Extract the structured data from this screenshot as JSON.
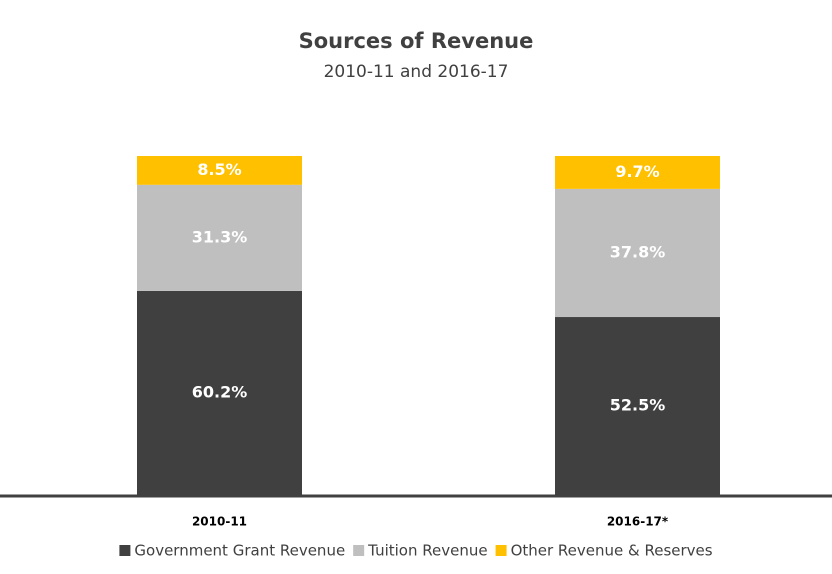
{
  "chart_data": {
    "type": "stacked_bar",
    "title": "Sources of Revenue",
    "subtitle": "2010-11 and 2016-17",
    "categories": [
      "2010-11",
      "2016-17*"
    ],
    "series": [
      {
        "name": "Government Grant Revenue",
        "color": "#404040",
        "values": [
          60.2,
          52.5
        ],
        "value_labels": [
          "60.2%",
          "52.5%"
        ]
      },
      {
        "name": "Tuition Revenue",
        "color": "#bfbfbf",
        "values": [
          31.3,
          37.8
        ],
        "value_labels": [
          "31.3%",
          "37.8%"
        ]
      },
      {
        "name": "Other Revenue & Reserves",
        "color": "#ffc000",
        "values": [
          8.5,
          9.7
        ],
        "value_labels": [
          "8.5%",
          "9.7%"
        ]
      }
    ],
    "ylim": [
      0,
      100
    ],
    "legend": "bottom"
  }
}
